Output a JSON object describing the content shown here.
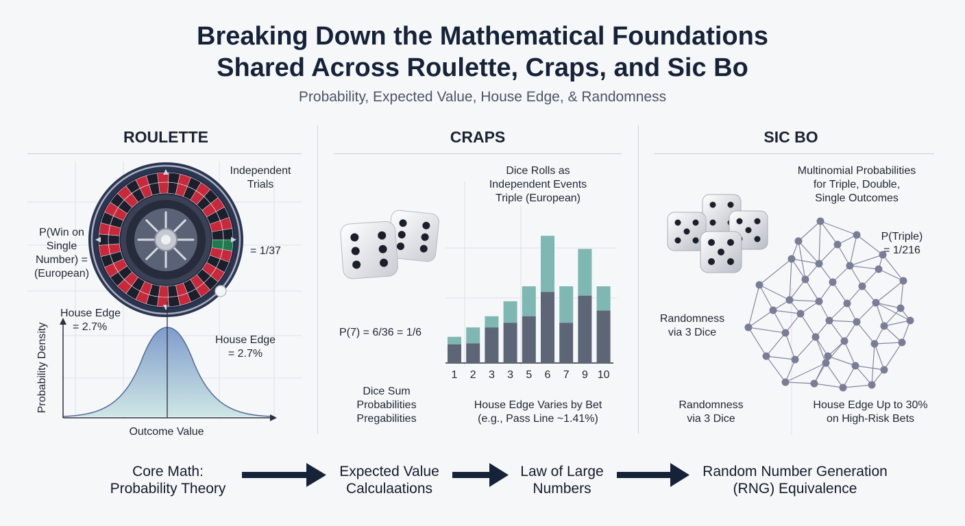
{
  "header": {
    "title_line1": "Breaking Down the Mathematical Foundations",
    "title_line2": "Shared Across Roulette, Craps, and Sic Bo",
    "subtitle": "Probability, Expected Value, House Edge, & Randomness"
  },
  "roulette": {
    "heading": "ROULETTE",
    "independent_trials": [
      "Independent",
      "Trials"
    ],
    "p_win": [
      "P(Win on",
      "Single",
      "Number) =",
      "(European)"
    ],
    "p_value": "= 1/37",
    "house_edge_left": [
      "House Edge",
      "= 2.7%"
    ],
    "house_edge_right": [
      "House Edge",
      "= 2.7%"
    ],
    "y_axis_label": "Probability Density",
    "x_axis_label": "Outcome Value"
  },
  "craps": {
    "heading": "CRAPS",
    "dice_events": [
      "Dice Rolls as",
      "Independent Events",
      "Triple (European)"
    ],
    "p7": "P(7) = 6/36 = 1/6",
    "sum_probs": [
      "Dice Sum",
      "Probabilities",
      "Pregabilities"
    ],
    "house_edge": [
      "House Edge Varies by Bet",
      "(e.g., Pass Line ~1.41%)"
    ]
  },
  "chart_data": {
    "type": "bar",
    "categories": [
      "1",
      "2",
      "3",
      "3",
      "5",
      "6",
      "7",
      "9",
      "10"
    ],
    "series": [
      {
        "values": [
          1.0,
          1.05,
          1.9,
          2.15,
          2.5,
          3.8,
          2.15,
          3.6,
          2.8
        ]
      },
      {
        "values": [
          1.4,
          1.9,
          2.5,
          3.3,
          4.1,
          6.8,
          4.1,
          6.1,
          4.1
        ]
      }
    ],
    "colors": [
      "#5d6677",
      "#7fb8b2"
    ],
    "ylim": [
      0,
      8
    ]
  },
  "sicbo": {
    "heading": "SIC BO",
    "multinomial": [
      "Multinomial Probabilities",
      "for Triple, Double,",
      "Single Outcomes"
    ],
    "p_triple": [
      "P(Triple)",
      "= 1/216"
    ],
    "randomness_mid": [
      "Randomness",
      "via 3 Dice"
    ],
    "randomness_bottom": [
      "Randomness",
      "via 3 Dice"
    ],
    "house_edge": [
      "House Edge Up to 30%",
      "on High-Risk Bets"
    ]
  },
  "flow": [
    [
      "Core Math:",
      "Probability Theory"
    ],
    [
      "Expected Value",
      "Calculaations"
    ],
    [
      "Law of Large",
      "Numbers"
    ],
    [
      "Random Number Generation",
      "(RNG) Equivalence"
    ]
  ],
  "colors": {
    "navy": "#152238",
    "roulette_red": "#c8283a",
    "roulette_black": "#1a1f2b",
    "curve_fill": "#8aa6cc",
    "network": "#7a7d96"
  },
  "icons": [
    "roulette-wheel-icon",
    "dice-icon",
    "arrow-right-icon",
    "network-graph-icon"
  ]
}
